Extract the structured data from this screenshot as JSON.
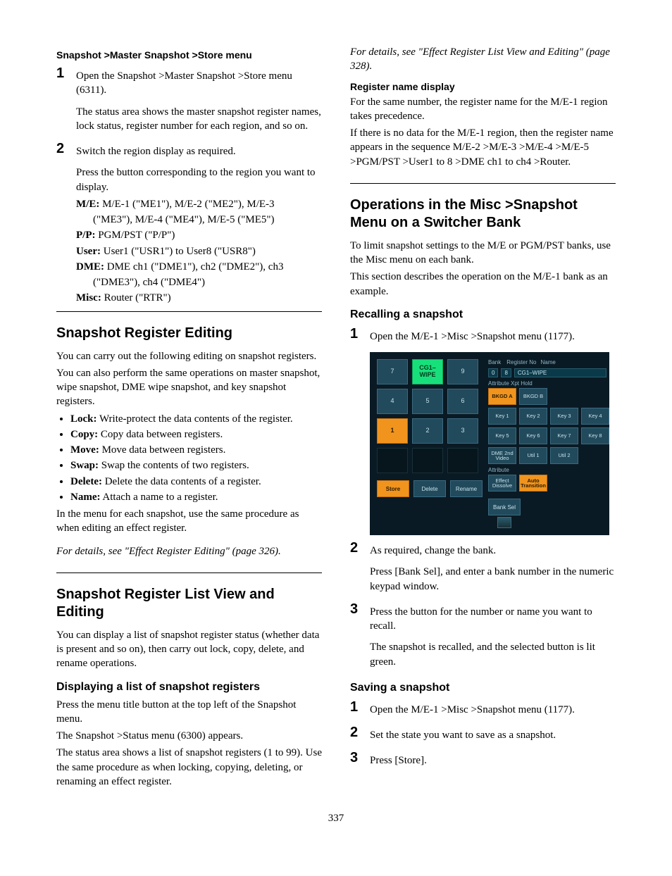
{
  "page_number": "337",
  "left": {
    "h4_store": "Snapshot >Master Snapshot >Store menu",
    "step1": "Open the Snapshot >Master Snapshot >Store menu (6311).",
    "step1_para": "The status area shows the master snapshot register names, lock status, register number for each region, and so on.",
    "step2": "Switch the region display as required.",
    "step2_para": "Press the button corresponding to the region you want to display.",
    "defs": {
      "me_lbl": "M/E:",
      "me_val1": " M/E-1 (\"ME1\"), M/E-2 (\"ME2\"), M/E-3",
      "me_val2": "(\"ME3\"), M/E-4 (\"ME4\"), M/E-5 (\"ME5\")",
      "pp_lbl": "P/P:",
      "pp_val": " PGM/PST (\"P/P\")",
      "user_lbl": "User:",
      "user_val": " User1 (\"USR1\") to User8 (\"USR8\")",
      "dme_lbl": "DME:",
      "dme_val1": " DME ch1 (\"DME1\"), ch2 (\"DME2\"), ch3",
      "dme_val2": "(\"DME3\"), ch4 (\"DME4\")",
      "misc_lbl": "Misc:",
      "misc_val": " Router (\"RTR\")"
    },
    "sec_edit": "Snapshot Register Editing",
    "edit_p1": "You can carry out the following editing on snapshot registers.",
    "edit_p2": "You can also perform the same operations on master snapshot, wipe snapshot, DME wipe snapshot, and key snapshot registers.",
    "bullets": [
      {
        "b": "Lock:",
        "t": " Write-protect the data contents of the register."
      },
      {
        "b": "Copy:",
        "t": " Copy data between registers."
      },
      {
        "b": "Move:",
        "t": " Move data between registers."
      },
      {
        "b": "Swap:",
        "t": " Swap the contents of two registers."
      },
      {
        "b": "Delete:",
        "t": " Delete the data contents of a register."
      },
      {
        "b": "Name:",
        "t": " Attach a name to a register."
      }
    ],
    "edit_p3": "In the menu for each snapshot, use the same procedure as when editing an effect register.",
    "edit_ref": "For details, see \"Effect Register Editing\" (page 326).",
    "sec_list": "Snapshot Register List View and Editing",
    "list_p1": "You can display a list of snapshot register status (whether data is present and so on), then carry out lock, copy, delete, and rename operations.",
    "sub_display": "Displaying a list of snapshot registers",
    "list_p2": "Press the menu title button at the top left of the Snapshot menu.",
    "list_p3": "The Snapshot >Status menu (6300) appears.",
    "list_p4": "The status area shows a list of snapshot registers (1 to 99). Use the same procedure as when locking, copying, deleting, or renaming an effect register."
  },
  "right": {
    "ref_top": "For details, see \"Effect Register List View and Editing\" (page 328).",
    "h4_regname": "Register name display",
    "regname_p1": "For the same number, the register name for the M/E-1 region takes precedence.",
    "regname_p2": "If there is no data for the M/E-1 region, then the register name appears in the sequence M/E-2 >M/E-3 >M/E-4 >M/E-5 >PGM/PST >User1 to 8 >DME ch1 to ch4 >Router.",
    "sec_ops": "Operations in the Misc >Snapshot Menu on a Switcher Bank",
    "ops_p1": "To limit snapshot settings to the M/E or PGM/PST banks, use the Misc menu on each bank.",
    "ops_p2": "This section describes the operation on the M/E-1 bank as an example.",
    "sub_recall": "Recalling a snapshot",
    "recall_s1": "Open the M/E-1 >Misc >Snapshot menu (1177).",
    "recall_s2": "As required, change the bank.",
    "recall_s2_p": "Press [Bank Sel], and enter a bank number in the numeric keypad window.",
    "recall_s3": "Press the button for the number or name you want to recall.",
    "recall_s3_p": "The snapshot is recalled, and the selected button is lit green.",
    "sub_save": "Saving a snapshot",
    "save_s1": "Open the M/E-1 >Misc >Snapshot menu (1177).",
    "save_s2": "Set the state you want to save as a snapshot.",
    "save_s3": "Press [Store]."
  },
  "menu": {
    "bank_lbl": "Bank",
    "bank_val": "0",
    "regno_lbl": "Register No",
    "regno_val": "8",
    "name_lbl": "Name",
    "name_val": "CG1–WIPE",
    "attr_hold": "Attribute Xpt Hold",
    "numpad": [
      {
        "label": "7",
        "state": ""
      },
      {
        "label": "CG1–\nWIPE",
        "state": "sel-green"
      },
      {
        "label": "9",
        "state": ""
      },
      {
        "label": "4",
        "state": ""
      },
      {
        "label": "5",
        "state": ""
      },
      {
        "label": "6",
        "state": ""
      },
      {
        "label": "1",
        "state": "sel-orange"
      },
      {
        "label": "2",
        "state": ""
      },
      {
        "label": "3",
        "state": ""
      },
      {
        "label": "",
        "state": "empty"
      },
      {
        "label": "",
        "state": "empty"
      },
      {
        "label": "",
        "state": "empty"
      }
    ],
    "row1": [
      {
        "label": "BKGD A",
        "state": "sel-orange"
      },
      {
        "label": "BKGD B",
        "state": ""
      }
    ],
    "row2": [
      {
        "label": "Key 1",
        "state": ""
      },
      {
        "label": "Key 2",
        "state": ""
      },
      {
        "label": "Key 3",
        "state": ""
      },
      {
        "label": "Key 4",
        "state": ""
      }
    ],
    "row3": [
      {
        "label": "Key 5",
        "state": ""
      },
      {
        "label": "Key 6",
        "state": ""
      },
      {
        "label": "Key 7",
        "state": ""
      },
      {
        "label": "Key 8",
        "state": ""
      }
    ],
    "row4": [
      {
        "label": "DME 2nd\nVideo",
        "state": ""
      },
      {
        "label": "Util 1",
        "state": ""
      },
      {
        "label": "Util 2",
        "state": ""
      }
    ],
    "attr_lbl": "Attribute",
    "row5": [
      {
        "label": "Effect\nDissolve",
        "state": ""
      },
      {
        "label": "Auto\nTransition",
        "state": "sel-orange"
      }
    ],
    "bottom": {
      "store": "Store",
      "delete": "Delete",
      "rename": "Rename",
      "banksel": "Bank Sel"
    },
    "colors": {
      "bg": "#0a1a24",
      "btn": "#214a5c",
      "btn_border": "#3a6a80",
      "green": "#17e07a",
      "orange": "#f0941e",
      "text": "#c8e0e8"
    }
  }
}
